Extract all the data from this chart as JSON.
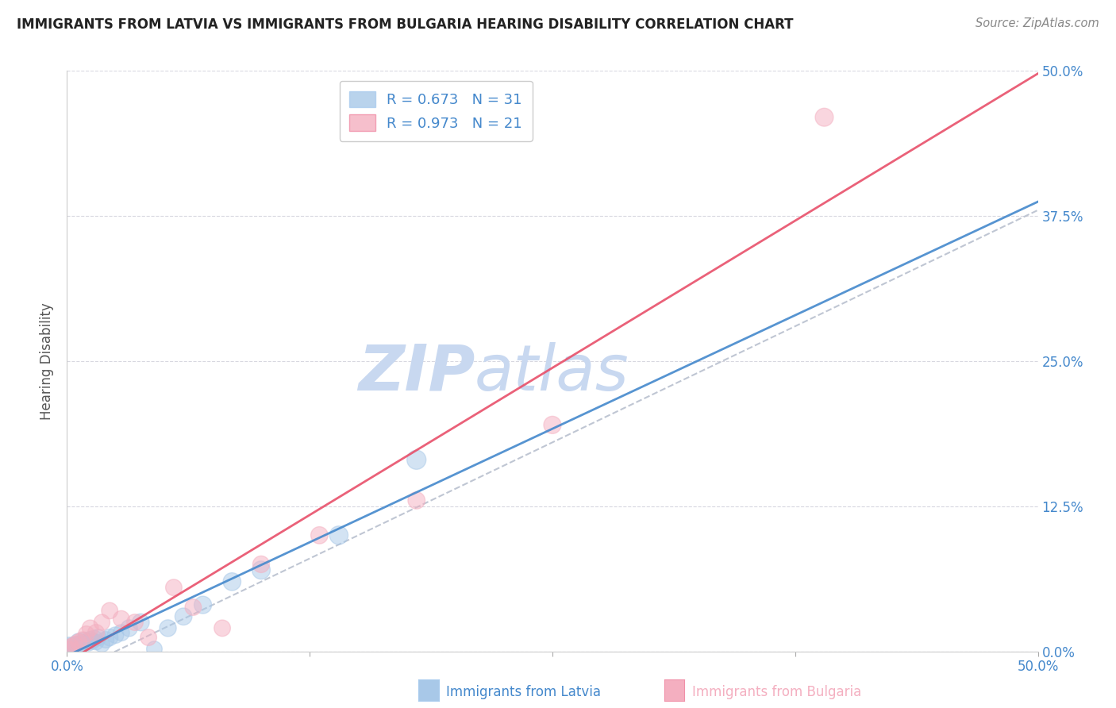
{
  "title": "IMMIGRANTS FROM LATVIA VS IMMIGRANTS FROM BULGARIA HEARING DISABILITY CORRELATION CHART",
  "source": "Source: ZipAtlas.com",
  "ylabel": "Hearing Disability",
  "xlim": [
    0.0,
    0.5
  ],
  "ylim": [
    0.0,
    0.5
  ],
  "xtick_vals": [
    0.0,
    0.125,
    0.25,
    0.375,
    0.5
  ],
  "ytick_vals": [
    0.0,
    0.125,
    0.25,
    0.375,
    0.5
  ],
  "legend_r_latvia": "R = 0.673",
  "legend_n_latvia": "N = 31",
  "legend_r_bulgaria": "R = 0.973",
  "legend_n_bulgaria": "N = 21",
  "color_latvia": "#a8c8e8",
  "color_bulgaria": "#f4afc0",
  "color_trendline_latvia": "#4488cc",
  "color_trendline_bulgaria": "#e8506a",
  "color_dashed": "#b0b8c8",
  "watermark_zip": "ZIP",
  "watermark_atlas": "atlas",
  "watermark_color": "#c8d8f0",
  "latvia_x": [
    0.001,
    0.002,
    0.003,
    0.004,
    0.005,
    0.006,
    0.007,
    0.008,
    0.009,
    0.01,
    0.011,
    0.012,
    0.013,
    0.014,
    0.015,
    0.016,
    0.018,
    0.02,
    0.022,
    0.025,
    0.028,
    0.032,
    0.038,
    0.045,
    0.052,
    0.06,
    0.07,
    0.085,
    0.1,
    0.14,
    0.18
  ],
  "latvia_y": [
    0.004,
    0.002,
    0.005,
    0.003,
    0.006,
    0.008,
    0.005,
    0.007,
    0.009,
    0.008,
    0.007,
    0.01,
    0.009,
    0.011,
    0.008,
    0.012,
    0.006,
    0.01,
    0.012,
    0.014,
    0.016,
    0.02,
    0.025,
    0.002,
    0.02,
    0.03,
    0.04,
    0.06,
    0.07,
    0.1,
    0.165
  ],
  "latvia_sizes": [
    300,
    200,
    220,
    180,
    220,
    250,
    200,
    220,
    250,
    220,
    200,
    230,
    220,
    230,
    200,
    220,
    200,
    220,
    230,
    220,
    220,
    230,
    240,
    200,
    230,
    240,
    250,
    260,
    270,
    280,
    300
  ],
  "bulgaria_x": [
    0.001,
    0.002,
    0.004,
    0.006,
    0.008,
    0.01,
    0.012,
    0.015,
    0.018,
    0.022,
    0.028,
    0.035,
    0.042,
    0.055,
    0.065,
    0.08,
    0.1,
    0.13,
    0.18,
    0.25,
    0.39
  ],
  "bulgaria_y": [
    0.002,
    0.004,
    0.006,
    0.008,
    0.01,
    0.015,
    0.02,
    0.016,
    0.025,
    0.035,
    0.028,
    0.025,
    0.012,
    0.055,
    0.038,
    0.02,
    0.075,
    0.1,
    0.13,
    0.195,
    0.46
  ],
  "bulgaria_sizes": [
    200,
    210,
    210,
    220,
    210,
    210,
    220,
    230,
    210,
    220,
    220,
    220,
    220,
    220,
    220,
    220,
    230,
    240,
    240,
    250,
    270
  ],
  "grid_color": "#d8d8e0",
  "background_color": "#ffffff",
  "axis_label_color": "#4488cc",
  "legend_text_color": "#4488cc"
}
